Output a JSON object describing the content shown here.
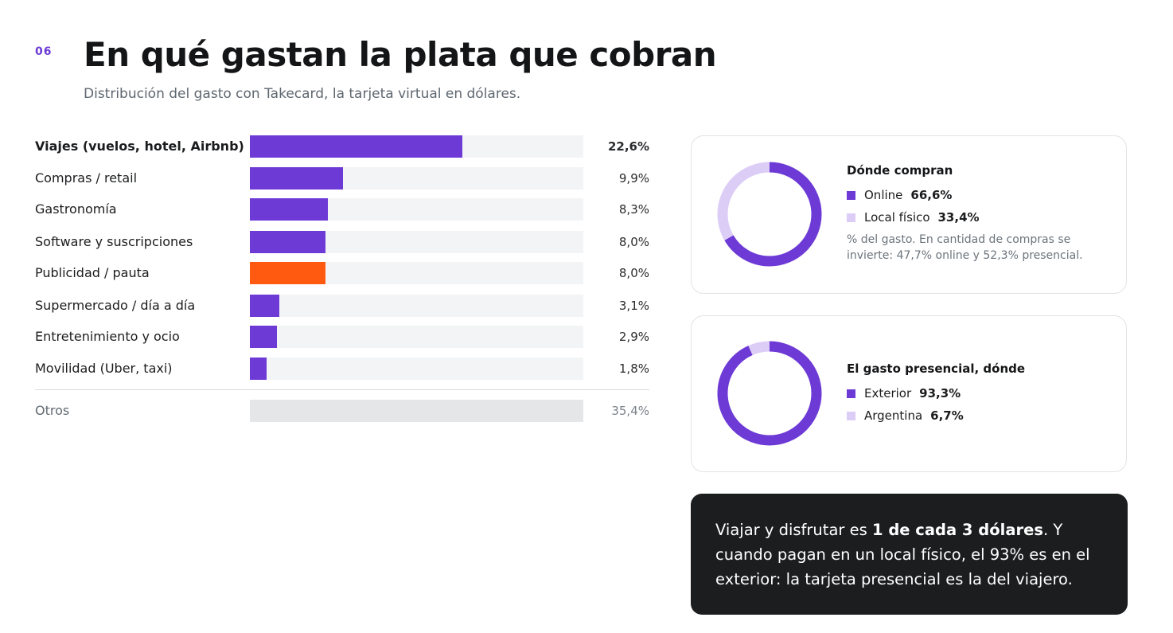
{
  "page_number": "06",
  "title": "En qué gastan la plata que cobran",
  "subtitle": "Distribución del gasto con Takecard, la tarjeta virtual en dólares.",
  "colors": {
    "accent_purple": "#6d3ad6",
    "accent_orange": "#ff5a0f",
    "light_purple": "#dccdf7",
    "track": "#f3f4f6",
    "otros": "#e4e6e8",
    "callout_bg": "#1c1d1f"
  },
  "chart_data": [
    {
      "type": "bar",
      "orientation": "horizontal",
      "categories": [
        "Viajes (vuelos, hotel, Airbnb)",
        "Compras / retail",
        "Gastronomía",
        "Software y suscripciones",
        "Publicidad / pauta",
        "Supermercado / día a día",
        "Entretenimiento y ocio",
        "Movilidad (Uber, taxi)",
        "Otros"
      ],
      "values": [
        22.6,
        9.9,
        8.3,
        8.0,
        8.0,
        3.1,
        2.9,
        1.8,
        35.4
      ],
      "value_labels": [
        "22,6%",
        "9,9%",
        "8,3%",
        "8,0%",
        "8,0%",
        "3,1%",
        "2,9%",
        "1,8%",
        "35,4%"
      ],
      "bar_colors": [
        "#6d3ad6",
        "#6d3ad6",
        "#6d3ad6",
        "#6d3ad6",
        "#ff5a0f",
        "#6d3ad6",
        "#6d3ad6",
        "#6d3ad6",
        "#e4e6e8"
      ],
      "xlim": [
        0,
        35.4
      ],
      "grid": false
    },
    {
      "type": "pie",
      "style": "donut",
      "title": "Dónde compran",
      "categories": [
        "Online",
        "Local físico"
      ],
      "values": [
        66.6,
        33.4
      ],
      "value_labels": [
        "66,6%",
        "33,4%"
      ],
      "colors": [
        "#6d3ad6",
        "#dccdf7"
      ],
      "note": "% del gasto. En cantidad de compras se invierte: 47,7% online y 52,3% presencial."
    },
    {
      "type": "pie",
      "style": "donut",
      "title": "El gasto presencial, dónde",
      "categories": [
        "Exterior",
        "Argentina"
      ],
      "values": [
        93.3,
        6.7
      ],
      "value_labels": [
        "93,3%",
        "6,7%"
      ],
      "colors": [
        "#6d3ad6",
        "#dccdf7"
      ]
    }
  ],
  "callout": {
    "part1": "Viajar y disfrutar es ",
    "bold": "1 de cada 3 dólares",
    "part2": ". Y cuando pagan en un local físico, el 93% es en el exterior: la tarjeta presencial es la del viajero."
  }
}
